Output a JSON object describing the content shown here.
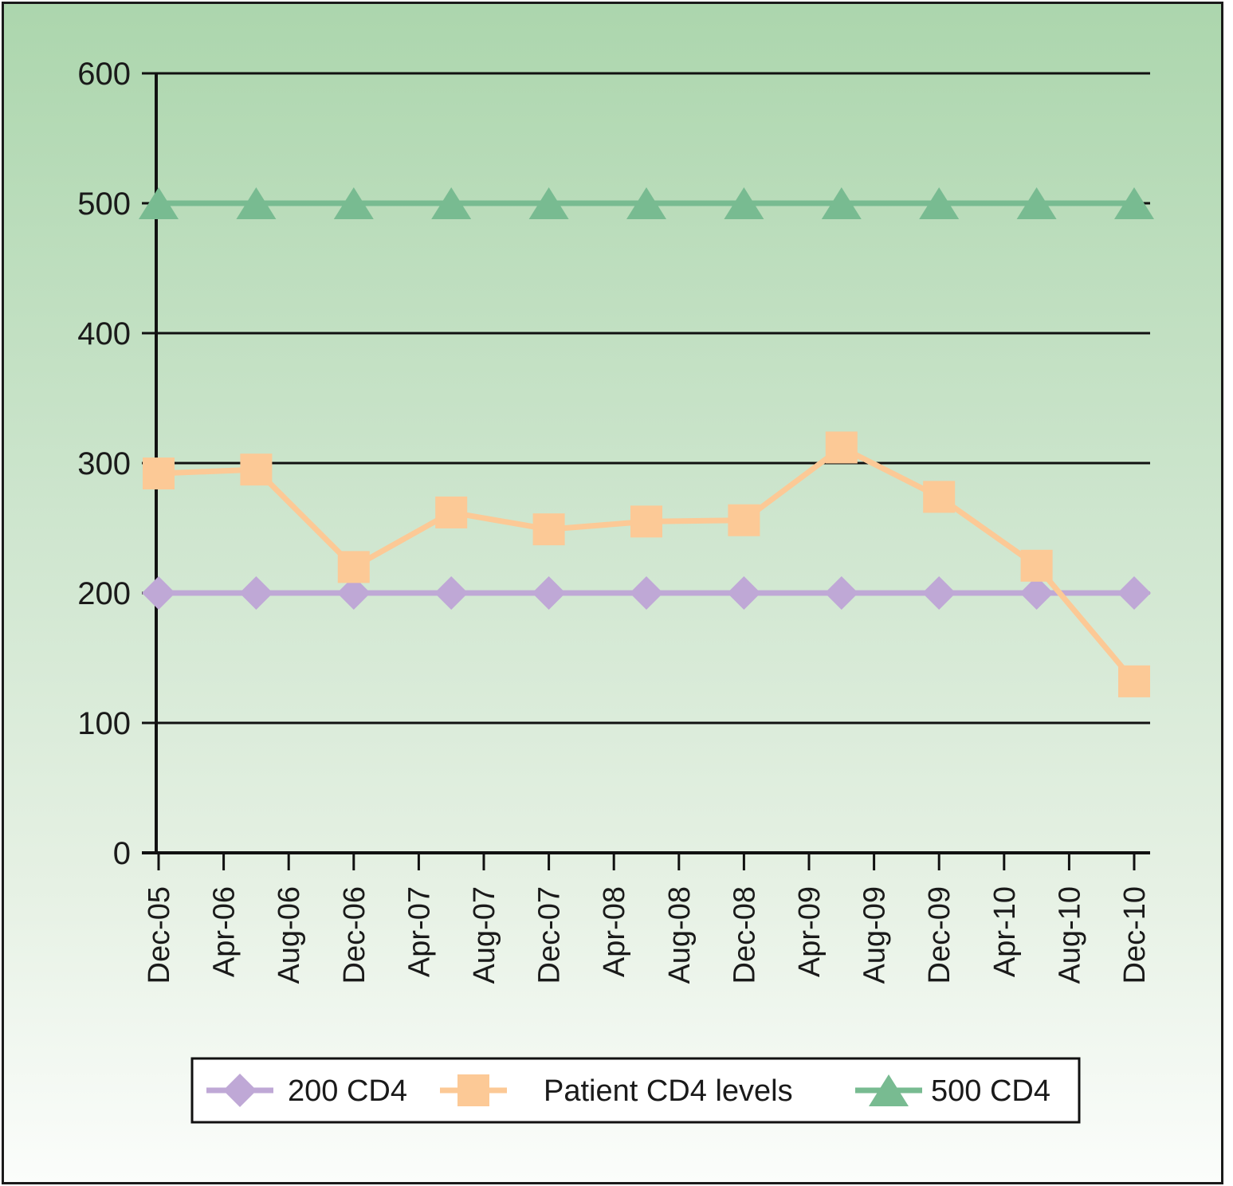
{
  "chart_data": {
    "type": "line",
    "title": "",
    "xlabel": "",
    "ylabel": "",
    "ylim": [
      0,
      600
    ],
    "yticks": [
      0,
      100,
      200,
      300,
      400,
      500,
      600
    ],
    "x_tick_labels": [
      "Dec-05",
      "Apr-06",
      "Aug-06",
      "Dec-06",
      "Apr-07",
      "Aug-07",
      "Dec-07",
      "Apr-08",
      "Aug-08",
      "Dec-08",
      "Apr-09",
      "Aug-09",
      "Dec-09",
      "Apr-10",
      "Aug-10",
      "Dec-10"
    ],
    "x_point_positions": [
      0,
      1.5,
      3,
      4.5,
      6,
      7.5,
      9,
      10.5,
      12,
      13.5,
      15
    ],
    "grid": "horizontal",
    "legend_position": "bottom",
    "series": [
      {
        "name": "200 CD4",
        "color": "#bfa8d6",
        "marker": "diamond",
        "values": [
          200,
          200,
          200,
          200,
          200,
          200,
          200,
          200,
          200,
          200,
          200
        ]
      },
      {
        "name": "Patient CD4 levels",
        "color": "#fcc996",
        "marker": "square",
        "values": [
          292,
          295,
          220,
          262,
          249,
          255,
          256,
          312,
          274,
          221,
          132
        ]
      },
      {
        "name": "500 CD4",
        "color": "#78bb91",
        "marker": "triangle",
        "values": [
          500,
          500,
          500,
          500,
          500,
          500,
          500,
          500,
          500,
          500,
          500
        ]
      }
    ]
  }
}
